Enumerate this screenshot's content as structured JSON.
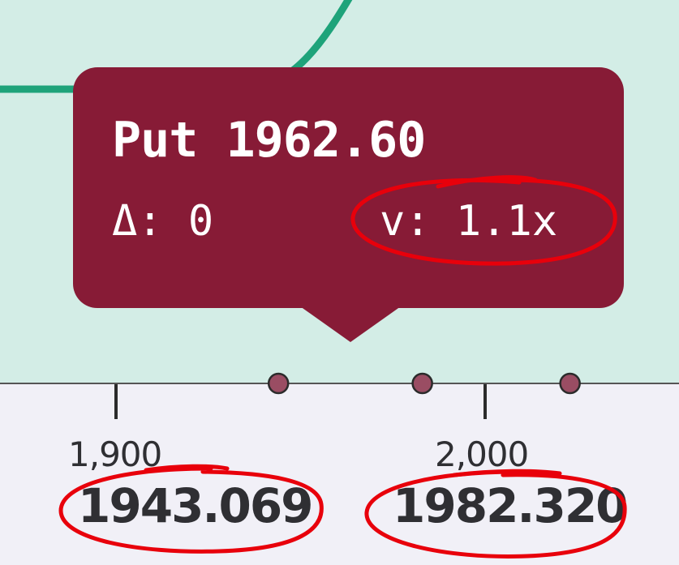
{
  "chart_data": {
    "type": "scatter",
    "x_axis": {
      "ticks": [
        1900,
        2000
      ],
      "tick_labels": [
        "1,900",
        "2,000"
      ],
      "range": [
        1869,
        2053
      ]
    },
    "x_value_labels": [
      {
        "value": 1943.069,
        "label": "1943.069"
      },
      {
        "value": 1982.32,
        "label": "1982.320"
      }
    ],
    "points": [
      {
        "x": 1944
      },
      {
        "x": 1983
      },
      {
        "x": 2023
      }
    ],
    "tooltip": {
      "title": "Put 1962.60",
      "delta": "Δ: 0",
      "volume": "v: 1.1x"
    },
    "colors": {
      "plot_background": "#d3ede6",
      "curve": "#1ea37a",
      "tooltip": "#871b36",
      "point": "#9a4d63",
      "annotation": "#e8000b"
    }
  }
}
